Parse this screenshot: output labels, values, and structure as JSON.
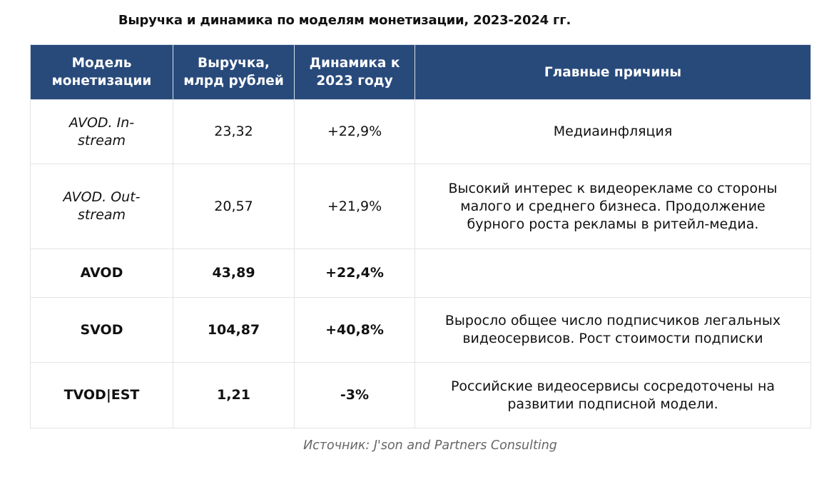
{
  "title": "Выручка и динамика по моделям монетизации, 2023-2024 гг.",
  "headers": [
    "Модель монетизации",
    "Выручка, млрд рублей",
    "Динамика к 2023 году",
    "Главные причины"
  ],
  "rows": [
    {
      "model": "AVOD. In-stream",
      "revenue": "23,32",
      "change": "+22,9%",
      "reason": "Медиаинфляция"
    },
    {
      "model": "AVOD. Out-stream",
      "revenue": "20,57",
      "change": "+21,9%",
      "reason": "Высокий интерес к видеорекламе со стороны малого и среднего бизнеса. Продолжение бурного роста рекламы в ритейл-медиа."
    },
    {
      "model": "AVOD",
      "revenue": "43,89",
      "change": "+22,4%",
      "reason": ""
    },
    {
      "model": "SVOD",
      "revenue": "104,87",
      "change": "+40,8%",
      "reason": "Выросло общее число подписчиков легальных видеосервисов. Рост стоимости подписки"
    },
    {
      "model": "TVOD|EST",
      "revenue": "1,21",
      "change": "-3%",
      "reason": "Российские видеосервисы сосредоточены на развитии подписной модели."
    }
  ],
  "source": "Источник: J'son and Partners Consulting"
}
